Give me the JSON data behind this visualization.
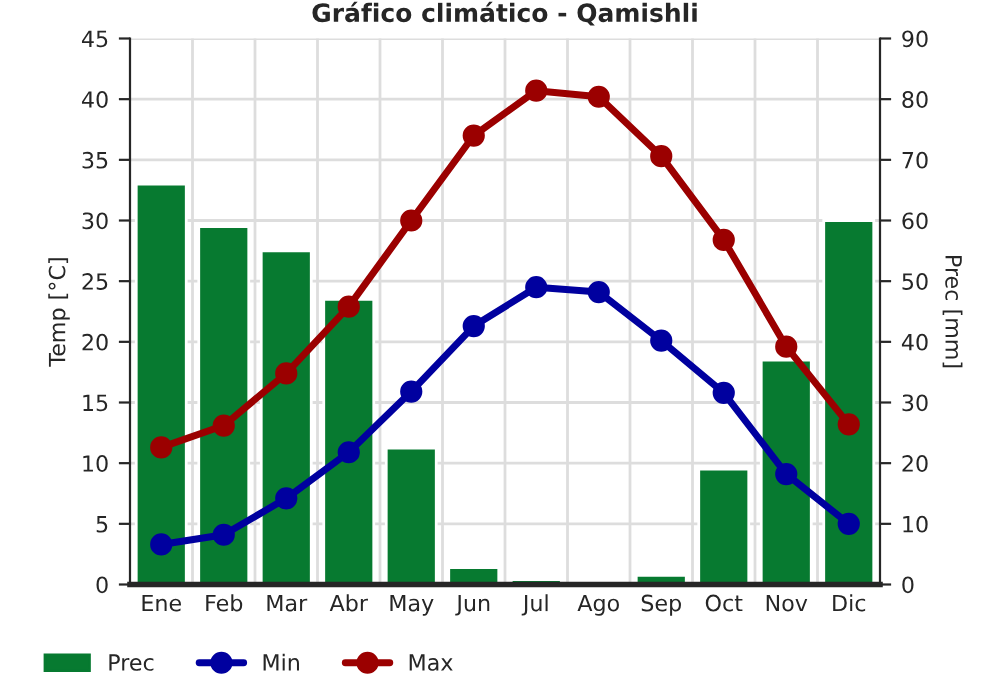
{
  "chart_data": {
    "type": "bar",
    "title": "Gráfico climático - Qamishli",
    "ylabel": "Temp [°C]",
    "y2label": "Prec [mm]",
    "categories": [
      "Ene",
      "Feb",
      "Mar",
      "Abr",
      "May",
      "Jun",
      "Jul",
      "Ago",
      "Sep",
      "Oct",
      "Nov",
      "Dic"
    ],
    "series": [
      {
        "name": "Prec",
        "axis": "y2",
        "color": "#077a30",
        "values": [
          66,
          59,
          55,
          47,
          22.5,
          2.8,
          0.8,
          0.3,
          1.5,
          19,
          37,
          60
        ]
      },
      {
        "name": "Min",
        "type": "line",
        "color": "#00009f",
        "values": [
          3.3,
          4.1,
          7.1,
          10.9,
          15.9,
          21.3,
          24.5,
          24.1,
          20.1,
          15.8,
          9.1,
          5.0
        ]
      },
      {
        "name": "Max",
        "type": "line",
        "color": "#9b0000",
        "values": [
          11.3,
          13.1,
          17.4,
          22.9,
          30.0,
          37.0,
          40.7,
          40.2,
          35.3,
          28.4,
          19.6,
          13.2
        ]
      }
    ],
    "ylim": [
      0,
      45
    ],
    "yticks": [
      0,
      5,
      10,
      15,
      20,
      25,
      30,
      35,
      40,
      45
    ],
    "y2lim": [
      0,
      90
    ],
    "y2ticks": [
      0,
      10,
      20,
      30,
      40,
      50,
      60,
      70,
      80,
      90
    ],
    "grid": true,
    "legend": "bottom",
    "marker": "circle",
    "line_style": "solid"
  }
}
